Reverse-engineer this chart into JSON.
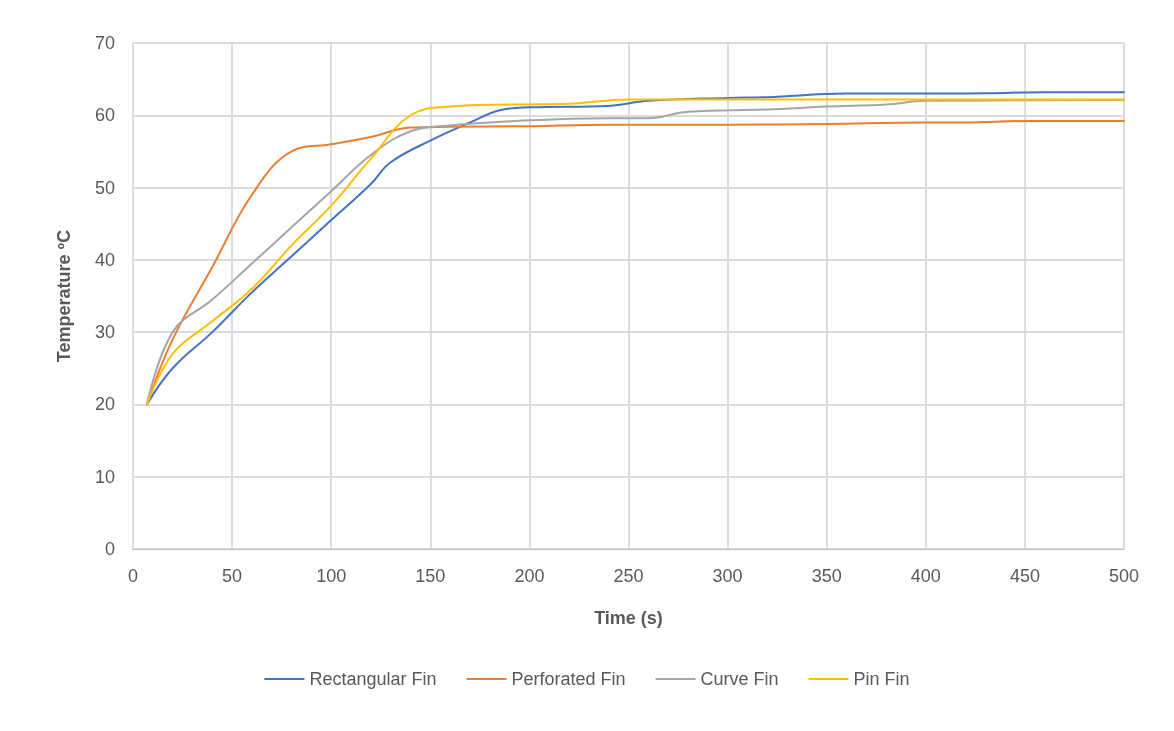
{
  "chart_data": {
    "type": "line",
    "xlabel": "Time (s)",
    "ylabel": "Temperature ºC",
    "xlim": [
      0,
      500
    ],
    "xticks": [
      0,
      50,
      100,
      150,
      200,
      250,
      300,
      350,
      400,
      450,
      500
    ],
    "ylim": [
      0,
      70
    ],
    "yticks": [
      0,
      10,
      20,
      30,
      40,
      50,
      60,
      70
    ],
    "grid": true,
    "legend": "bottom",
    "marker": "none",
    "line_style": "solid",
    "series": [
      {
        "name": "Rectangular Fin",
        "color": "#4472c4",
        "x": [
          7,
          20,
          40,
          60,
          80,
          100,
          120,
          130,
          150,
          170,
          185,
          200,
          240,
          260,
          300,
          320,
          360,
          400,
          440,
          460,
          500
        ],
        "values": [
          20,
          25,
          30,
          35.5,
          40.5,
          45.5,
          50.5,
          53.5,
          56.5,
          59,
          60.7,
          61.1,
          61.3,
          62,
          62.4,
          62.5,
          63,
          63,
          63.1,
          63.2,
          63.2
        ]
      },
      {
        "name": "Perforated Fin",
        "color": "#ed7d31",
        "x": [
          7,
          20,
          40,
          60,
          80,
          100,
          120,
          140,
          160,
          200,
          240,
          300,
          350,
          400,
          420,
          450,
          500
        ],
        "values": [
          20,
          29,
          39,
          49,
          55,
          56,
          57,
          58.3,
          58.4,
          58.5,
          58.7,
          58.7,
          58.8,
          59,
          59,
          59.2,
          59.2
        ]
      },
      {
        "name": "Curve Fin",
        "color": "#a5a5a5",
        "x": [
          7,
          20,
          40,
          60,
          80,
          100,
          120,
          140,
          160,
          200,
          240,
          260,
          280,
          320,
          350,
          380,
          400,
          500
        ],
        "values": [
          20,
          30,
          34.5,
          39.5,
          44.5,
          49.5,
          54.5,
          57.8,
          58.6,
          59.3,
          59.6,
          59.6,
          60.5,
          60.8,
          61.2,
          61.5,
          62,
          62.1
        ]
      },
      {
        "name": "Pin Fin",
        "color": "#ffc000",
        "x": [
          7,
          20,
          40,
          60,
          80,
          100,
          120,
          140,
          160,
          190,
          220,
          250,
          300,
          500
        ],
        "values": [
          20,
          27,
          31.5,
          36,
          42,
          47.5,
          54,
          60,
          61.2,
          61.5,
          61.6,
          62.2,
          62.2,
          62.2
        ]
      }
    ]
  }
}
